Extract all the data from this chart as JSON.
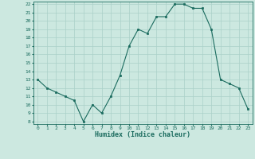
{
  "x": [
    0,
    1,
    2,
    3,
    4,
    5,
    6,
    7,
    8,
    9,
    10,
    11,
    12,
    13,
    14,
    15,
    16,
    17,
    18,
    19,
    20,
    21,
    22,
    23
  ],
  "y": [
    13,
    12,
    11.5,
    11,
    10.5,
    8,
    10,
    9,
    11,
    13.5,
    17,
    19,
    18.5,
    20.5,
    20.5,
    22,
    22,
    21.5,
    21.5,
    19,
    13,
    12.5,
    12,
    9.5
  ],
  "line_color": "#1a6b5e",
  "marker_color": "#1a6b5e",
  "bg_color": "#cce8e0",
  "grid_color": "#aad0c8",
  "axis_label_color": "#1a6b5e",
  "tick_color": "#1a6b5e",
  "xlabel": "Humidex (Indice chaleur)",
  "ylim": [
    8,
    22
  ],
  "xlim": [
    -0.5,
    23.5
  ],
  "yticks": [
    8,
    9,
    10,
    11,
    12,
    13,
    14,
    15,
    16,
    17,
    18,
    19,
    20,
    21,
    22
  ],
  "xticks": [
    0,
    1,
    2,
    3,
    4,
    5,
    6,
    7,
    8,
    9,
    10,
    11,
    12,
    13,
    14,
    15,
    16,
    17,
    18,
    19,
    20,
    21,
    22,
    23
  ]
}
